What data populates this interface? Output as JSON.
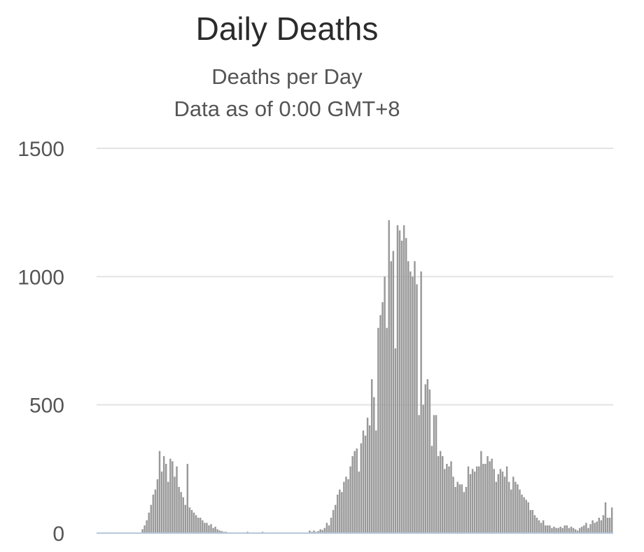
{
  "chart_data": {
    "type": "bar",
    "title": "Daily Deaths",
    "subtitle": "Deaths per Day",
    "subtitle2": "Data as of 0:00 GMT+8",
    "xlabel": "",
    "ylabel": "",
    "ylim": [
      0,
      1500
    ],
    "yticks": [
      0,
      500,
      1000,
      1500
    ],
    "grid": true,
    "legend": "none",
    "bar_color": "#999999",
    "grid_color": "#e3e3e3",
    "baseline_color": "#b8c7db",
    "values": [
      0,
      0,
      0,
      0,
      0,
      0,
      0,
      0,
      0,
      0,
      0,
      0,
      0,
      0,
      0,
      0,
      0,
      0,
      0,
      0,
      0,
      15,
      30,
      50,
      80,
      110,
      150,
      170,
      210,
      320,
      240,
      300,
      270,
      200,
      290,
      280,
      220,
      260,
      180,
      160,
      140,
      110,
      270,
      100,
      90,
      80,
      70,
      60,
      60,
      50,
      40,
      40,
      30,
      35,
      20,
      25,
      15,
      10,
      8,
      5,
      5,
      3,
      2,
      2,
      1,
      1,
      0,
      0,
      0,
      0,
      5,
      0,
      0,
      0,
      0,
      0,
      0,
      5,
      0,
      0,
      0,
      0,
      0,
      0,
      0,
      0,
      0,
      0,
      0,
      0,
      0,
      0,
      0,
      0,
      0,
      0,
      0,
      0,
      0,
      10,
      5,
      10,
      5,
      8,
      15,
      12,
      20,
      40,
      30,
      60,
      90,
      110,
      150,
      170,
      160,
      200,
      220,
      210,
      260,
      300,
      320,
      330,
      240,
      350,
      400,
      380,
      450,
      420,
      600,
      530,
      400,
      800,
      850,
      900,
      1000,
      800,
      1220,
      1060,
      1100,
      720,
      1200,
      1180,
      1140,
      1200,
      1150,
      1060,
      1020,
      1000,
      1060,
      970,
      460,
      1020,
      500,
      580,
      600,
      560,
      340,
      460,
      460,
      300,
      320,
      300,
      250,
      270,
      260,
      280,
      220,
      180,
      200,
      190,
      190,
      160,
      180,
      260,
      230,
      250,
      240,
      260,
      260,
      320,
      270,
      270,
      300,
      280,
      290,
      250,
      200,
      230,
      250,
      240,
      220,
      260,
      200,
      170,
      220,
      200,
      190,
      170,
      150,
      140,
      130,
      120,
      90,
      90,
      70,
      60,
      50,
      40,
      50,
      30,
      30,
      30,
      20,
      25,
      20,
      20,
      25,
      20,
      30,
      30,
      20,
      25,
      20,
      15,
      10,
      20,
      25,
      30,
      40,
      20,
      35,
      50,
      40,
      45,
      60,
      50,
      70,
      120,
      60,
      60,
      100
    ]
  }
}
